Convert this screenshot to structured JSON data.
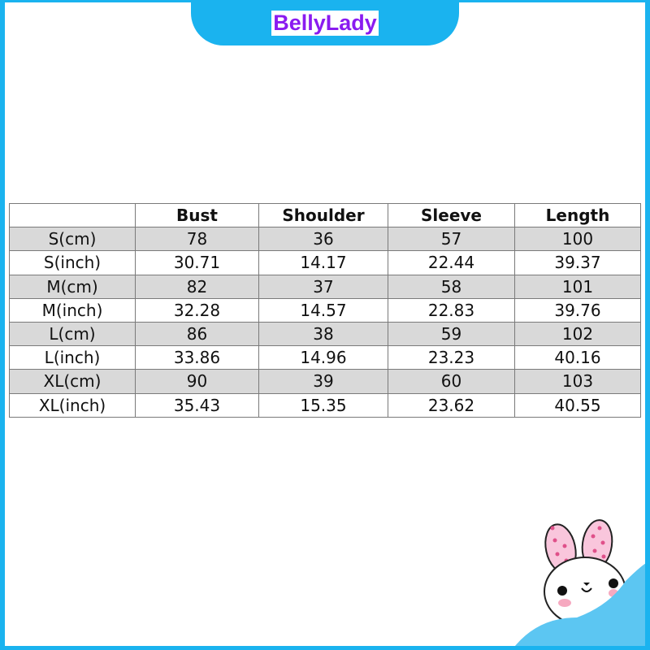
{
  "brand": "BellyLady",
  "table": {
    "headers": [
      "",
      "Bust",
      "Shoulder",
      "Sleeve",
      "Length"
    ],
    "rows": [
      [
        "S(cm)",
        "78",
        "36",
        "57",
        "100"
      ],
      [
        "S(inch)",
        "30.71",
        "14.17",
        "22.44",
        "39.37"
      ],
      [
        "M(cm)",
        "82",
        "37",
        "58",
        "101"
      ],
      [
        "M(inch)",
        "32.28",
        "14.57",
        "22.83",
        "39.76"
      ],
      [
        "L(cm)",
        "86",
        "38",
        "59",
        "102"
      ],
      [
        "L(inch)",
        "33.86",
        "14.96",
        "23.23",
        "40.16"
      ],
      [
        "XL(cm)",
        "90",
        "39",
        "60",
        "103"
      ],
      [
        "XL(inch)",
        "35.43",
        "15.35",
        "23.62",
        "40.55"
      ]
    ]
  },
  "colors": {
    "frame": "#1ab3ef",
    "brand": "#8a1bf0",
    "row_shade": "#d9d9d9"
  }
}
